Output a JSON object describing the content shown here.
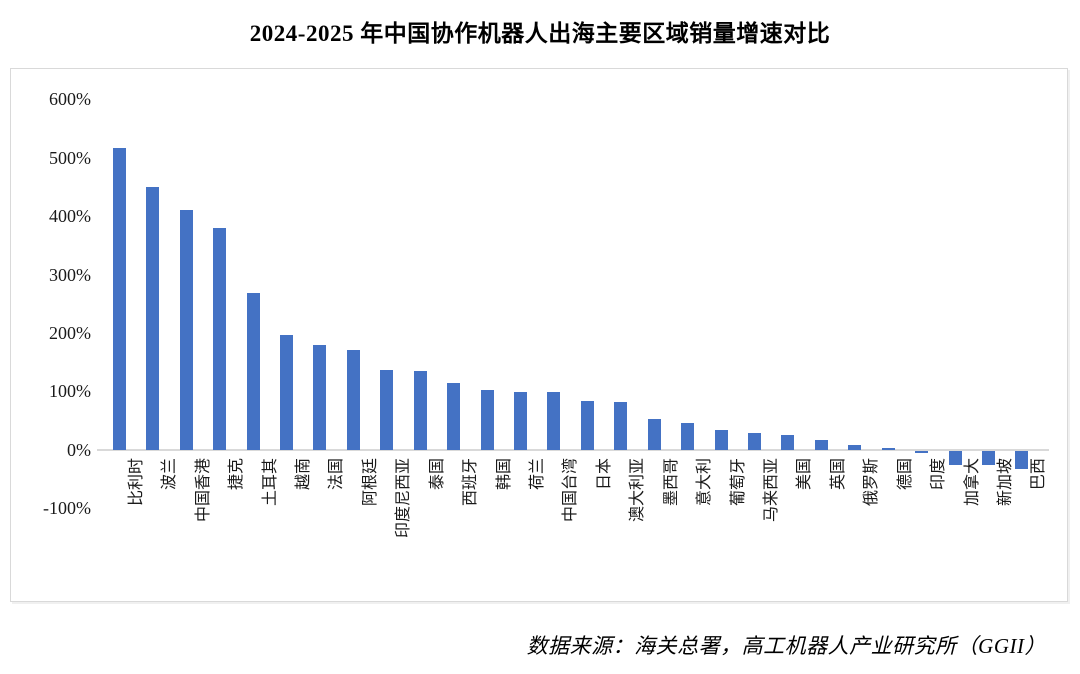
{
  "title": "2024-2025 年中国协作机器人出海主要区域销量增速对比",
  "source_note": "数据来源：海关总署，高工机器人产业研究所（GGII）",
  "colors": {
    "bar": "#4472c4",
    "axis": "#d9d9d9",
    "text": "#1a1a1a"
  },
  "chart_data": {
    "type": "bar",
    "title": "2024-2025 年中国协作机器人出海主要区域销量增速对比",
    "categories": [
      "比利时",
      "波兰",
      "中国香港",
      "捷克",
      "土耳其",
      "越南",
      "法国",
      "阿根廷",
      "印度尼西亚",
      "泰国",
      "西班牙",
      "韩国",
      "荷兰",
      "中国台湾",
      "日本",
      "澳大利亚",
      "墨西哥",
      "意大利",
      "葡萄牙",
      "马来西亚",
      "美国",
      "英国",
      "俄罗斯",
      "德国",
      "印度",
      "加拿大",
      "新加坡",
      "巴西"
    ],
    "values": [
      517,
      450,
      410,
      380,
      268,
      196,
      179,
      170,
      137,
      135,
      115,
      102,
      99,
      98,
      83,
      82,
      52,
      46,
      34,
      28,
      25,
      17,
      8,
      3,
      -4,
      -24,
      -24,
      -32
    ],
    "unit": "%",
    "y_ticks": [
      "600%",
      "500%",
      "400%",
      "300%",
      "200%",
      "100%",
      "0%",
      "-100%"
    ],
    "y_tick_values": [
      600,
      500,
      400,
      300,
      200,
      100,
      0,
      -100
    ],
    "ylim": [
      -100,
      600
    ],
    "xlabel": "",
    "ylabel": "",
    "grid": false,
    "legend": null,
    "source": "数据来源：海关总署，高工机器人产业研究所（GGII）"
  }
}
